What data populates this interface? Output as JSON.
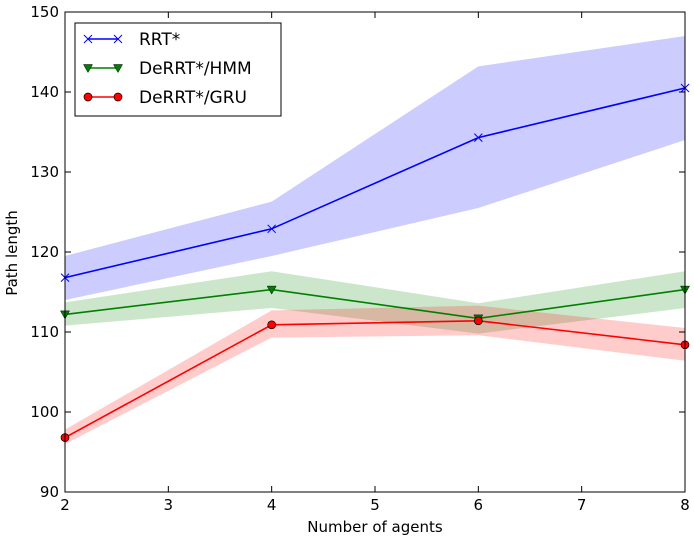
{
  "chart_data": {
    "type": "line",
    "title": "",
    "xlabel": "Number of agents",
    "ylabel": "Path length",
    "xlim": [
      2,
      8
    ],
    "ylim": [
      90,
      150
    ],
    "xticks": [
      2,
      3,
      4,
      5,
      6,
      7,
      8
    ],
    "yticks": [
      90,
      100,
      110,
      120,
      130,
      140,
      150
    ],
    "x": [
      2,
      4,
      6,
      8
    ],
    "legend_position": "top-left",
    "series": [
      {
        "name": "RRT*",
        "color": "#0000ff",
        "band_color": "#ccccff",
        "marker": "x",
        "values": [
          116.8,
          122.9,
          134.3,
          140.5
        ],
        "lower": [
          114.0,
          119.5,
          125.5,
          134.0
        ],
        "upper": [
          119.5,
          126.3,
          143.2,
          147.0
        ]
      },
      {
        "name": "DeRRT*/HMM",
        "color": "#008000",
        "band_color": "#cce6cc",
        "marker": "triangle-down",
        "values": [
          112.2,
          115.3,
          111.7,
          115.3
        ],
        "lower": [
          110.8,
          113.0,
          109.8,
          113.0
        ],
        "upper": [
          113.7,
          117.6,
          113.6,
          117.6
        ]
      },
      {
        "name": "DeRRT*/GRU",
        "color": "#ff0000",
        "band_color": "#ffcccc",
        "marker": "circle",
        "values": [
          96.8,
          110.9,
          111.4,
          108.4
        ],
        "lower": [
          96.0,
          109.3,
          109.6,
          106.4
        ],
        "upper": [
          97.8,
          112.7,
          113.3,
          110.5
        ]
      }
    ]
  }
}
